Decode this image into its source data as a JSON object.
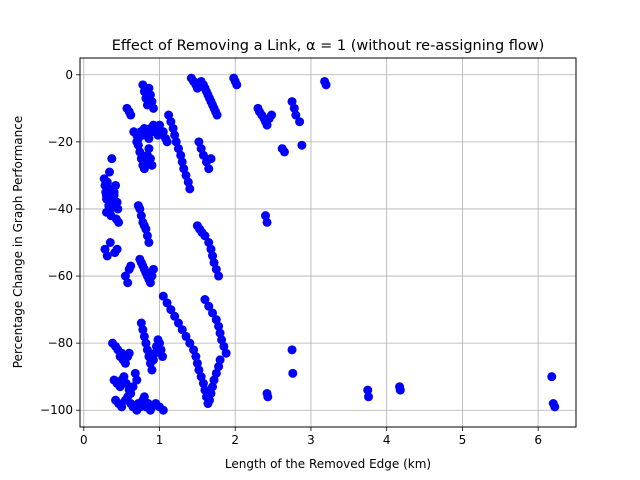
{
  "chart_data": {
    "type": "scatter",
    "title": "Effect of Removing a Link, α = 1 (without re-assigning flow)",
    "xlabel": "Length of the Removed Edge (km)",
    "ylabel": "Percentage Change in Graph Performance",
    "xlim": [
      -0.05,
      6.5
    ],
    "ylim": [
      -105,
      5
    ],
    "xticks": [
      0,
      1,
      2,
      3,
      4,
      5,
      6
    ],
    "yticks": [
      0,
      -20,
      -40,
      -60,
      -80,
      -100
    ],
    "xtick_labels": [
      "0",
      "1",
      "2",
      "3",
      "4",
      "5",
      "6"
    ],
    "ytick_labels": [
      "0",
      "−20",
      "−40",
      "−60",
      "−80",
      "−100"
    ],
    "grid": true,
    "marker_color": "#0000ff",
    "series": [
      {
        "x": [
          0.27,
          0.28,
          0.29,
          0.3,
          0.31,
          0.32,
          0.33,
          0.34,
          0.35,
          0.36,
          0.38,
          0.4,
          0.42,
          0.44,
          0.45,
          0.3,
          0.33,
          0.36,
          0.4,
          0.43,
          0.28,
          0.31,
          0.35,
          0.41,
          0.44,
          0.3,
          0.34,
          0.37,
          0.4,
          0.46,
          0.38,
          0.42,
          0.45,
          0.48,
          0.5,
          0.52,
          0.55,
          0.58,
          0.6,
          0.4,
          0.44,
          0.48,
          0.5,
          0.53,
          0.56,
          0.6,
          0.62,
          0.65,
          0.68,
          0.7,
          0.42,
          0.46,
          0.5,
          0.55,
          0.58,
          0.62,
          0.65,
          0.7,
          0.72,
          0.75,
          0.78,
          0.8,
          0.82,
          0.85,
          0.88,
          0.9,
          0.95,
          1.0,
          1.05,
          0.55,
          0.58,
          0.6,
          0.62,
          0.57,
          0.6,
          0.62,
          0.66,
          0.7,
          0.72,
          0.75,
          0.78,
          0.8,
          0.82,
          0.84,
          0.86,
          0.88,
          0.9,
          0.92,
          0.94,
          0.96,
          0.98,
          0.7,
          0.72,
          0.74,
          0.76,
          0.78,
          0.8,
          0.82,
          0.84,
          0.86,
          0.88,
          0.9,
          0.72,
          0.74,
          0.76,
          0.78,
          0.8,
          0.82,
          0.84,
          0.86,
          0.74,
          0.76,
          0.78,
          0.8,
          0.82,
          0.84,
          0.86,
          0.88,
          0.9,
          0.92,
          0.76,
          0.78,
          0.8,
          0.82,
          0.84,
          0.86,
          0.88,
          0.9,
          0.92,
          0.94,
          0.96,
          0.98,
          1.0,
          1.02,
          1.04,
          0.78,
          0.8,
          0.82,
          0.84,
          0.86,
          0.88,
          0.9,
          0.92,
          1.0,
          1.05,
          1.08,
          1.1,
          1.12,
          1.15,
          1.18,
          1.2,
          1.22,
          1.25,
          1.28,
          1.3,
          1.32,
          1.35,
          1.38,
          1.4,
          1.05,
          1.1,
          1.15,
          1.2,
          1.25,
          1.3,
          1.35,
          1.4,
          1.45,
          1.48,
          1.5,
          1.52,
          1.55,
          1.58,
          1.6,
          1.62,
          1.64,
          1.66,
          1.68,
          1.7,
          1.72,
          1.75,
          1.78,
          1.8,
          1.55,
          1.58,
          1.6,
          1.62,
          1.64,
          1.66,
          1.68,
          1.7,
          1.72,
          1.74,
          1.76,
          1.52,
          1.55,
          1.58,
          1.62,
          1.65,
          1.68,
          1.5,
          1.53,
          1.56,
          1.6,
          1.65,
          1.68,
          1.7,
          1.72,
          1.75,
          1.78,
          1.6,
          1.65,
          1.7,
          1.75,
          1.78,
          1.8,
          1.82,
          1.85,
          1.88,
          1.42,
          1.45,
          1.48,
          1.5,
          1.98,
          2.0,
          2.02,
          2.3,
          2.32,
          2.35,
          2.38,
          2.4,
          2.42,
          2.45,
          2.48,
          2.75,
          2.78,
          2.8,
          2.85,
          2.88,
          2.62,
          2.65,
          2.4,
          2.42,
          2.42,
          2.43,
          2.75,
          2.76,
          3.18,
          3.2,
          3.75,
          3.76,
          4.17,
          4.18,
          6.18,
          6.2,
          6.22
        ],
        "y": [
          -31,
          -33,
          -35,
          -37,
          -32,
          -34,
          -36,
          -38,
          -40,
          -42,
          -34,
          -36,
          -33,
          -38,
          -40,
          -41,
          -39,
          -37,
          -39,
          -43,
          -52,
          -54,
          -50,
          -53,
          -52,
          -36,
          -29,
          -25,
          -35,
          -44,
          -80,
          -81,
          -82,
          -84,
          -83,
          -85,
          -86,
          -84,
          -83,
          -91,
          -92,
          -93,
          -91,
          -90,
          -92,
          -94,
          -95,
          -93,
          -89,
          -91,
          -97,
          -98,
          -99,
          -97,
          -96,
          -98,
          -99,
          -100,
          -98,
          -99,
          -97,
          -96,
          -99,
          -98,
          -100,
          -99,
          -98,
          -99,
          -100,
          -60,
          -62,
          -58,
          -57,
          -10,
          -11,
          -12,
          -17,
          -18,
          -19,
          -17,
          -18,
          -16,
          -17,
          -18,
          -19,
          -16,
          -17,
          -15,
          -16,
          -17,
          -18,
          -20,
          -21,
          -23,
          -25,
          -27,
          -28,
          -26,
          -24,
          -22,
          -25,
          -27,
          -39,
          -40,
          -42,
          -44,
          -45,
          -46,
          -48,
          -50,
          -55,
          -56,
          -57,
          -58,
          -59,
          -60,
          -61,
          -62,
          -60,
          -58,
          -74,
          -76,
          -78,
          -80,
          -82,
          -84,
          -86,
          -88,
          -85,
          -83,
          -81,
          -79,
          -80,
          -82,
          -84,
          -3,
          -5,
          -7,
          -9,
          -4,
          -6,
          -8,
          -10,
          -15,
          -17,
          -19,
          -20,
          -12,
          -14,
          -16,
          -18,
          -20,
          -22,
          -24,
          -26,
          -28,
          -30,
          -32,
          -34,
          -66,
          -68,
          -70,
          -72,
          -74,
          -76,
          -78,
          -80,
          -82,
          -84,
          -86,
          -88,
          -90,
          -92,
          -94,
          -96,
          -98,
          -97,
          -95,
          -93,
          -91,
          -89,
          -87,
          -85,
          -2,
          -3,
          -4,
          -5,
          -6,
          -7,
          -8,
          -9,
          -10,
          -11,
          -12,
          -20,
          -22,
          -24,
          -26,
          -28,
          -25,
          -45,
          -46,
          -47,
          -48,
          -50,
          -52,
          -54,
          -56,
          -58,
          -60,
          -67,
          -69,
          -71,
          -73,
          -75,
          -77,
          -79,
          -81,
          -83,
          -1,
          -2,
          -3,
          -4,
          -1,
          -2,
          -3,
          -10,
          -11,
          -12,
          -13,
          -14,
          -15,
          -13,
          -12,
          -8,
          -10,
          -12,
          -14,
          -21,
          -22,
          -23,
          -42,
          -44,
          -95,
          -96,
          -82,
          -89,
          -2,
          -3,
          -94,
          -96,
          -93,
          -94,
          -90,
          -98,
          -99
        ]
      }
    ]
  }
}
